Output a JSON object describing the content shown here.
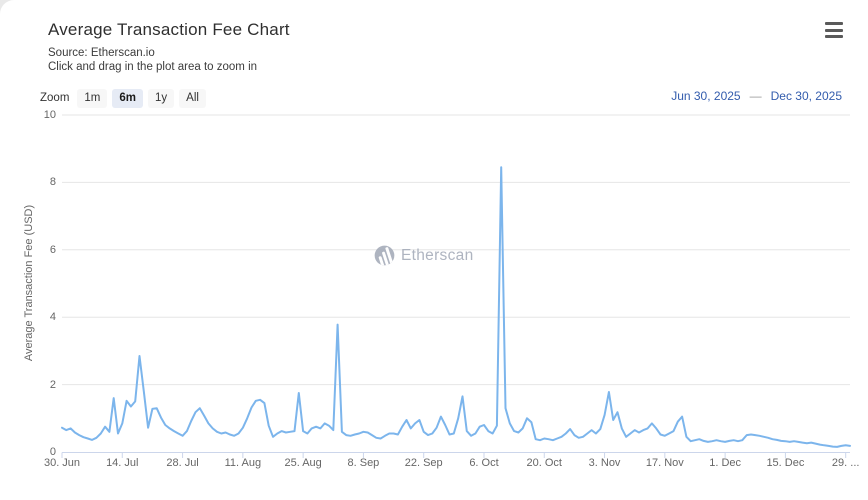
{
  "header": {
    "title": "Average Transaction Fee Chart",
    "source_line": "Source: Etherscan.io",
    "hint_line": "Click and drag in the plot area to zoom in"
  },
  "range_selector": {
    "zoom_label": "Zoom",
    "buttons": [
      {
        "label": "1m",
        "selected": false
      },
      {
        "label": "6m",
        "selected": true
      },
      {
        "label": "1y",
        "selected": false
      },
      {
        "label": "All",
        "selected": false
      }
    ],
    "from_date": "Jun 30, 2025",
    "separator": "—",
    "to_date": "Dec 30, 2025"
  },
  "watermark": {
    "text": "Etherscan"
  },
  "colors": {
    "line": "#7cb5ec",
    "gridline": "#e6e6e6",
    "axis_line": "#ccd6eb",
    "tick_text": "#666666",
    "range_date_text": "#335cad",
    "selected_button_bg": "#e6ebf5",
    "button_bg": "#f7f7f7",
    "watermark": "#a8aebb"
  },
  "chart_data": {
    "type": "line",
    "title": "Average Transaction Fee Chart",
    "ylabel": "Average Transaction Fee (USD)",
    "ylim": [
      0,
      10
    ],
    "y_ticks": [
      0,
      2,
      4,
      6,
      8,
      10
    ],
    "grid": "horizontal",
    "legend": "none",
    "start_date": "2025-06-30",
    "end_date": "2025-12-30",
    "x_tick_day_indices": [
      0,
      14,
      28,
      42,
      56,
      70,
      84,
      98,
      112,
      126,
      140,
      154,
      168,
      182
    ],
    "x_tick_labels": [
      "30. Jun",
      "14. Jul",
      "28. Jul",
      "11. Aug",
      "25. Aug",
      "8. Sep",
      "22. Sep",
      "6. Oct",
      "20. Oct",
      "3. Nov",
      "17. Nov",
      "1. Dec",
      "15. Dec",
      "29. ..."
    ],
    "values": [
      0.72,
      0.65,
      0.7,
      0.58,
      0.5,
      0.44,
      0.4,
      0.36,
      0.42,
      0.55,
      0.75,
      0.6,
      1.6,
      0.55,
      0.85,
      1.52,
      1.35,
      1.5,
      2.85,
      1.8,
      0.72,
      1.28,
      1.3,
      1.02,
      0.8,
      0.7,
      0.62,
      0.55,
      0.48,
      0.62,
      0.92,
      1.18,
      1.3,
      1.08,
      0.85,
      0.7,
      0.6,
      0.55,
      0.58,
      0.52,
      0.48,
      0.55,
      0.72,
      1.0,
      1.32,
      1.52,
      1.55,
      1.45,
      0.78,
      0.45,
      0.55,
      0.62,
      0.58,
      0.6,
      0.62,
      1.75,
      0.62,
      0.55,
      0.7,
      0.75,
      0.7,
      0.85,
      0.78,
      0.65,
      3.78,
      0.6,
      0.5,
      0.48,
      0.52,
      0.55,
      0.6,
      0.58,
      0.5,
      0.42,
      0.4,
      0.48,
      0.55,
      0.55,
      0.52,
      0.75,
      0.95,
      0.7,
      0.85,
      0.95,
      0.6,
      0.5,
      0.55,
      0.72,
      1.05,
      0.8,
      0.52,
      0.55,
      1.0,
      1.65,
      0.62,
      0.48,
      0.55,
      0.75,
      0.8,
      0.62,
      0.55,
      0.78,
      8.45,
      1.3,
      0.85,
      0.62,
      0.58,
      0.7,
      1.0,
      0.88,
      0.38,
      0.35,
      0.4,
      0.38,
      0.35,
      0.4,
      0.45,
      0.55,
      0.68,
      0.5,
      0.42,
      0.45,
      0.55,
      0.65,
      0.55,
      0.68,
      1.1,
      1.78,
      0.95,
      1.18,
      0.7,
      0.45,
      0.55,
      0.65,
      0.58,
      0.65,
      0.7,
      0.85,
      0.7,
      0.52,
      0.48,
      0.55,
      0.62,
      0.9,
      1.05,
      0.45,
      0.32,
      0.35,
      0.38,
      0.33,
      0.3,
      0.32,
      0.35,
      0.32,
      0.3,
      0.33,
      0.35,
      0.32,
      0.35,
      0.5,
      0.52,
      0.5,
      0.48,
      0.45,
      0.42,
      0.38,
      0.36,
      0.33,
      0.32,
      0.3,
      0.32,
      0.3,
      0.28,
      0.26,
      0.28,
      0.25,
      0.22,
      0.2,
      0.18,
      0.16,
      0.15,
      0.18,
      0.2,
      0.18
    ]
  }
}
